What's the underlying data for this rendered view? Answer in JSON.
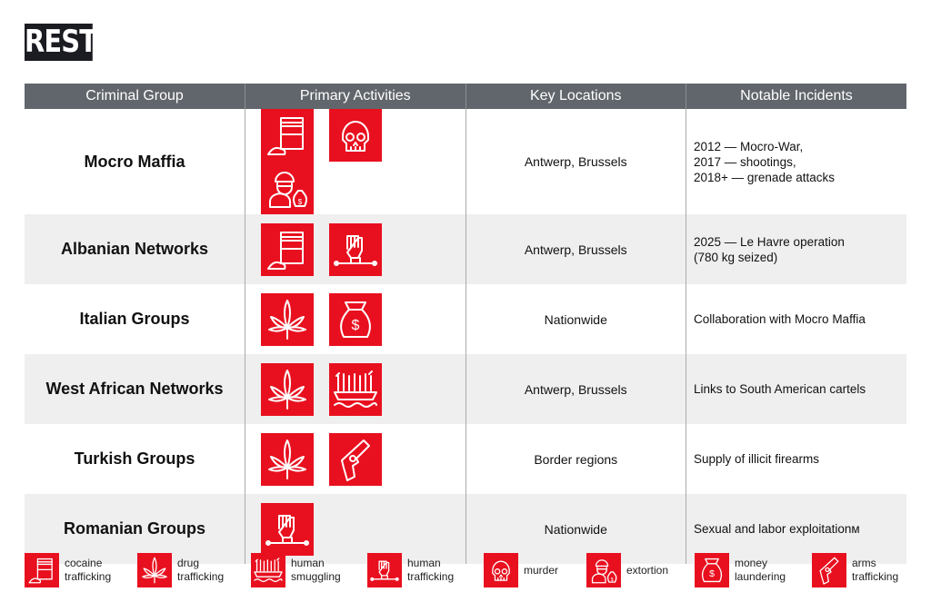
{
  "logo": "REST",
  "header": [
    "Criminal Group",
    "Primary Activities",
    "Key Locations",
    "Notable Incidents"
  ],
  "rows": [
    {
      "group": "Mocro Maffia",
      "icons": [
        "cocaine",
        "skull",
        "extortion"
      ],
      "locations": "Antwerp, Brussels",
      "incidents": [
        "2012 — Mocro-War,",
        "2017 — shootings,",
        "2018+ — grenade attacks"
      ]
    },
    {
      "group": "Albanian Networks",
      "icons": [
        "cocaine",
        "fist"
      ],
      "locations": "Antwerp, Brussels",
      "incidents": [
        "2025 — Le Havre operation",
        "(780 kg seized)"
      ]
    },
    {
      "group": "Italian Groups",
      "icons": [
        "leaf",
        "money"
      ],
      "locations": "Nationwide",
      "incidents": [
        "Collaboration with Mocro Maffia"
      ]
    },
    {
      "group": "West African Networks",
      "icons": [
        "leaf",
        "smuggling"
      ],
      "locations": "Antwerp, Brussels",
      "incidents": [
        "Links to South American cartels"
      ]
    },
    {
      "group": "Turkish Groups",
      "icons": [
        "leaf",
        "gun"
      ],
      "locations": "Border regions",
      "incidents": [
        "Supply of illicit firearms"
      ]
    },
    {
      "group": "Romanian Groups",
      "icons": [
        "fist"
      ],
      "locations": "Nationwide",
      "incidents": [
        "Sexual and labor exploitationм"
      ]
    }
  ],
  "legend": [
    {
      "icon": "cocaine",
      "label": [
        "cocaine",
        "trafficking"
      ]
    },
    {
      "icon": "leaf",
      "label": [
        "drug",
        "trafficking"
      ]
    },
    {
      "icon": "smuggling",
      "label": [
        "human",
        "smuggling"
      ]
    },
    {
      "icon": "fist",
      "label": [
        "human",
        "trafficking"
      ]
    },
    {
      "icon": "skull",
      "label": [
        "murder"
      ]
    },
    {
      "icon": "extortion",
      "label": [
        "extortion"
      ]
    },
    {
      "icon": "money",
      "label": [
        "money",
        "laundering"
      ]
    },
    {
      "icon": "gun",
      "label": [
        "arms",
        "trafficking"
      ]
    }
  ],
  "colors": {
    "accent": "#e8101f",
    "header": "#61666c"
  }
}
